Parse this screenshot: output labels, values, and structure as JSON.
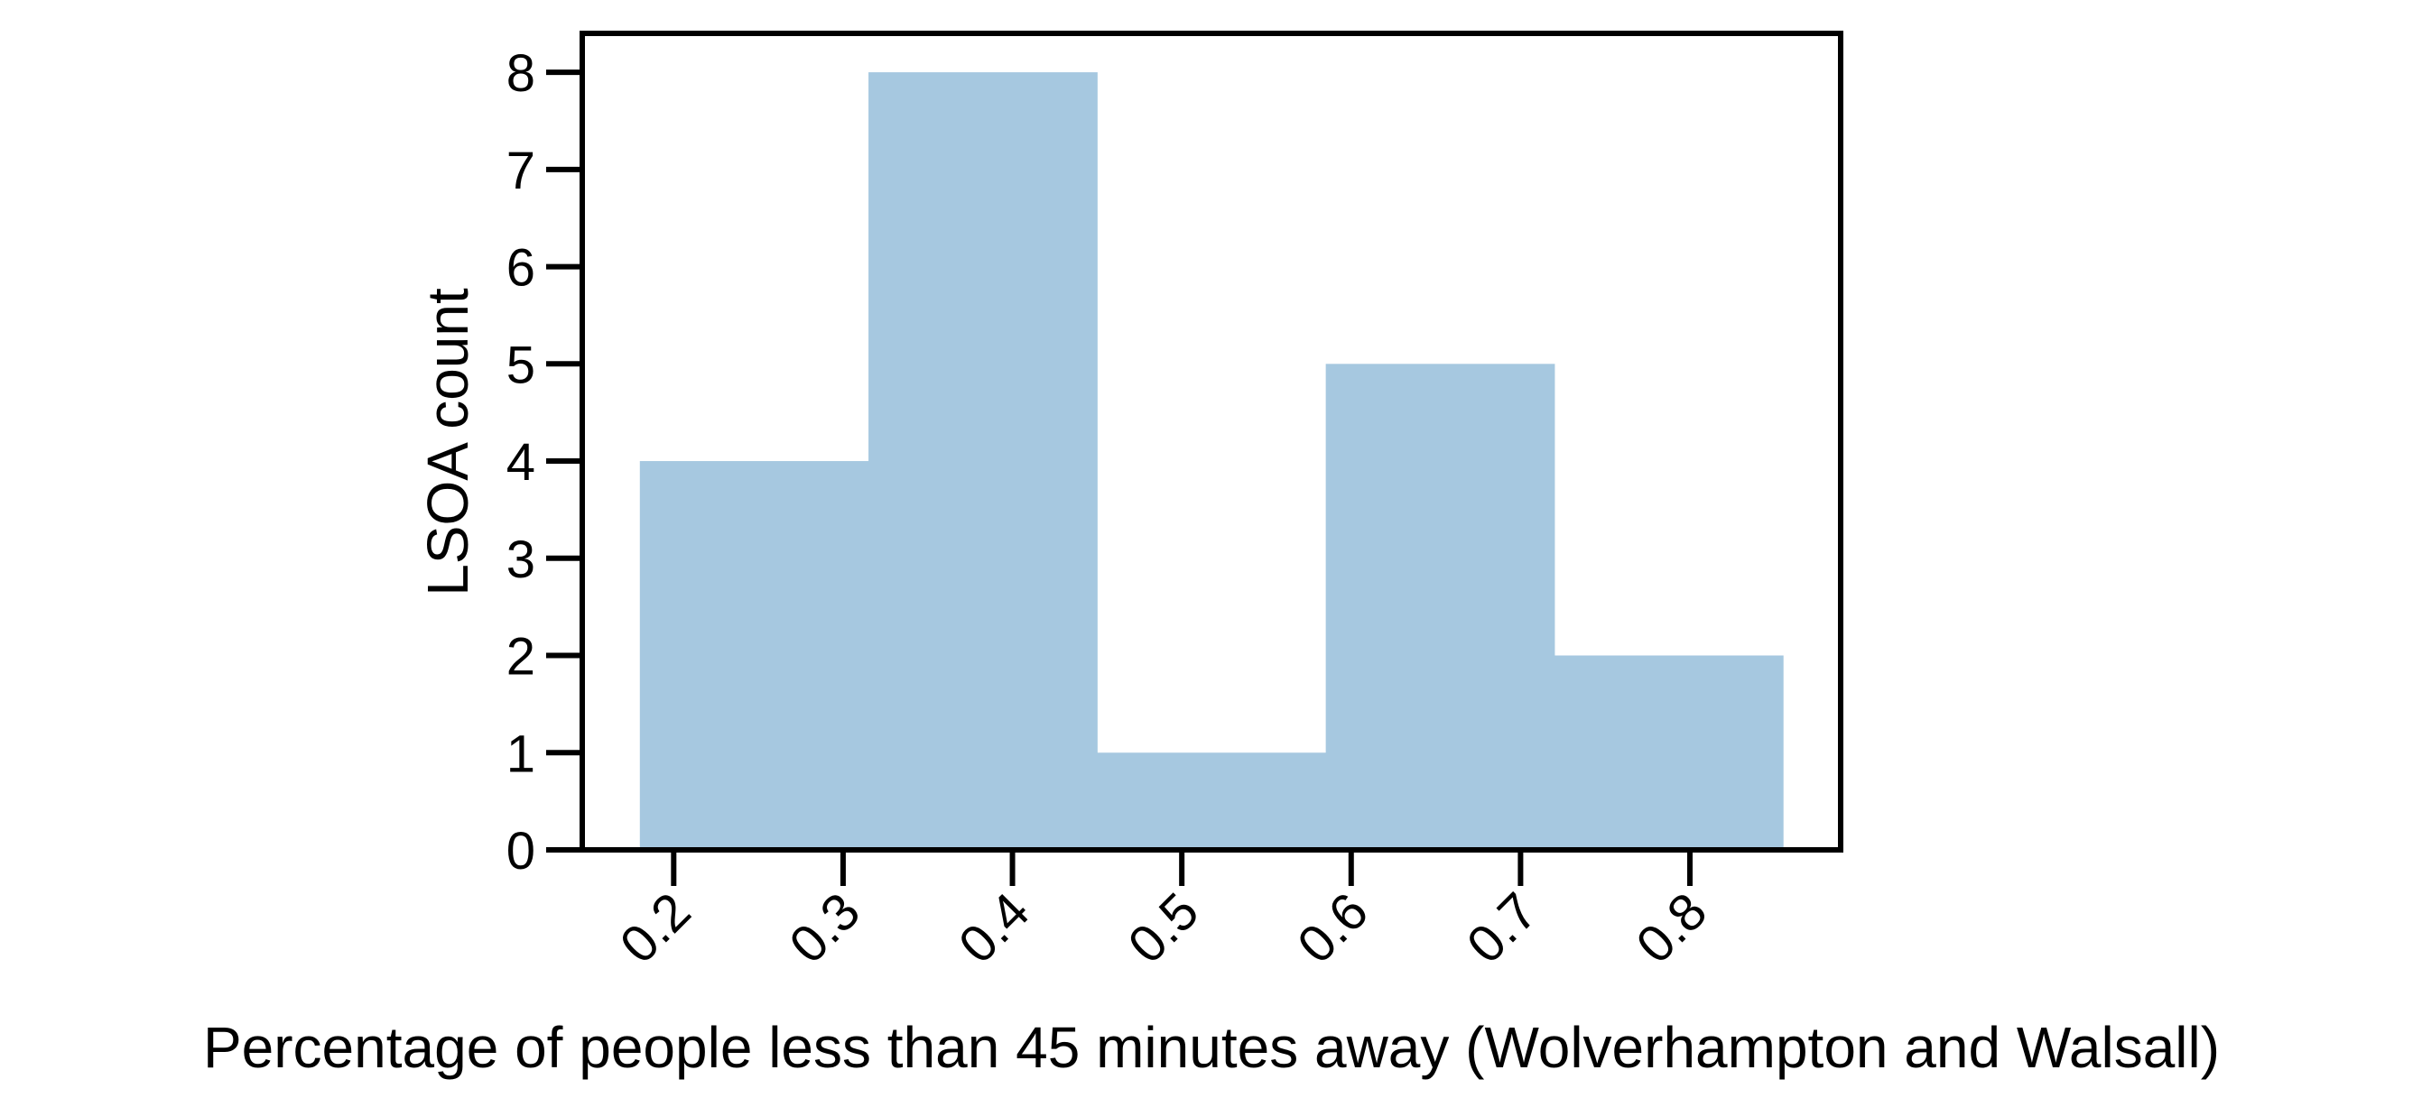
{
  "chart_data": {
    "type": "bar",
    "bins": [
      {
        "x0": 0.18,
        "x1": 0.315,
        "count": 4
      },
      {
        "x0": 0.315,
        "x1": 0.45,
        "count": 8
      },
      {
        "x0": 0.45,
        "x1": 0.585,
        "count": 1
      },
      {
        "x0": 0.585,
        "x1": 0.72,
        "count": 5
      },
      {
        "x0": 0.72,
        "x1": 0.855,
        "count": 2
      }
    ],
    "xlabel": "Percentage of people less than 45 minutes away (Wolverhampton and Walsall)",
    "ylabel": "LSOA count",
    "xlim": [
      0.146,
      0.889
    ],
    "ylim": [
      0,
      8.4
    ],
    "xticks": [
      "0.2",
      "0.3",
      "0.4",
      "0.5",
      "0.6",
      "0.7",
      "0.8"
    ],
    "yticks": [
      "0",
      "1",
      "2",
      "3",
      "4",
      "5",
      "6",
      "7",
      "8"
    ],
    "grid": false,
    "bar_color": "#a6c8e0"
  }
}
